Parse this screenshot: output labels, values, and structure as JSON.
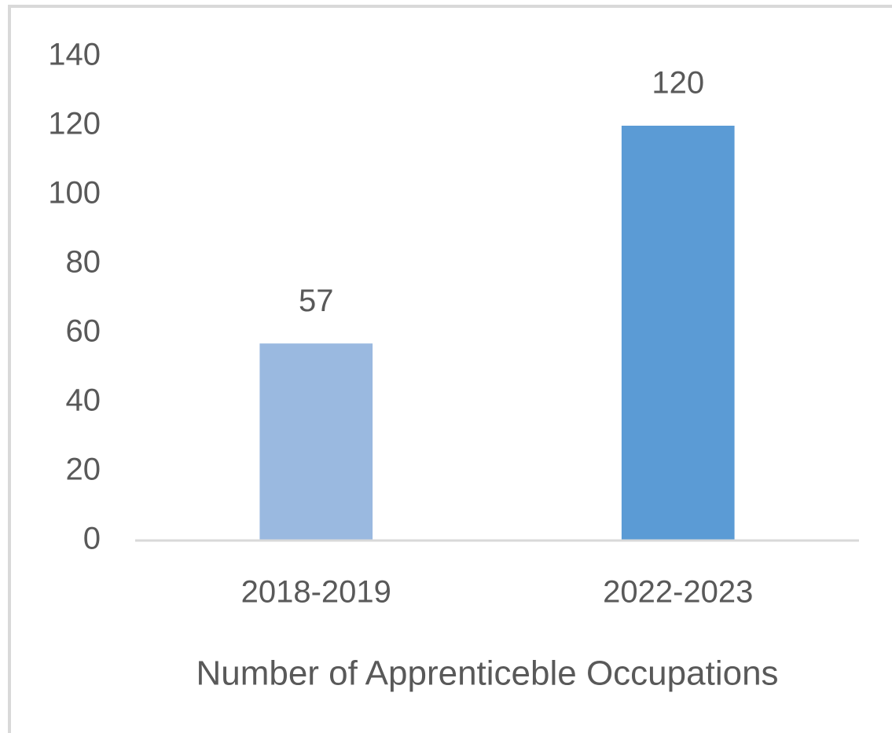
{
  "chart_data": {
    "type": "bar",
    "x_label": "Number of Apprenticeble Occupations",
    "categories": [
      "2018-2019",
      "2022-2023"
    ],
    "values": [
      57,
      120
    ],
    "colors": [
      "#9ab9e0",
      "#5b9bd5"
    ],
    "ylim": [
      0,
      140
    ],
    "yticks": [
      0,
      20,
      40,
      60,
      80,
      100,
      120,
      140
    ],
    "grid": false,
    "data_labels": true
  }
}
